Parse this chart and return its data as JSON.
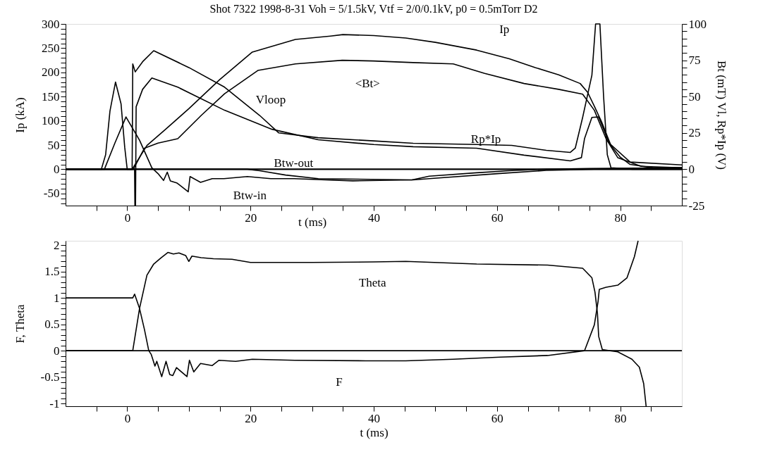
{
  "chart_data": [
    {
      "type": "line",
      "title": "Shot 7322   1998-8-31   Voh = 5/1.5kV, Vtf = 2/0/0.1kV, p0 = 0.5mTorr D2",
      "xlabel": "t (ms)",
      "ylabel": "Ip (kA)",
      "y2label": "Bt (mT)  Vl, Rp*Ip (V)",
      "xlim": [
        -10,
        90
      ],
      "xticks": [
        {
          "value": -5,
          "label": null
        },
        0,
        {
          "value": 5,
          "label": null
        },
        {
          "value": 10,
          "label": null
        },
        {
          "value": 15,
          "label": null
        },
        20,
        {
          "value": 25,
          "label": null
        },
        {
          "value": 30,
          "label": null
        },
        {
          "value": 35,
          "label": null
        },
        40,
        {
          "value": 45,
          "label": null
        },
        {
          "value": 50,
          "label": null
        },
        {
          "value": 55,
          "label": null
        },
        60,
        {
          "value": 65,
          "label": null
        },
        {
          "value": 70,
          "label": null
        },
        {
          "value": 75,
          "label": null
        },
        80,
        {
          "value": 85,
          "label": null
        }
      ],
      "ylim": [
        -75,
        300
      ],
      "yticks": [
        {
          "value": -70,
          "label": null
        },
        {
          "value": -60,
          "label": null
        },
        -50,
        {
          "value": -40,
          "label": null
        },
        {
          "value": -30,
          "label": null
        },
        {
          "value": -20,
          "label": null
        },
        {
          "value": -10,
          "label": null
        },
        0,
        {
          "value": 10,
          "label": null
        },
        {
          "value": 20,
          "label": null
        },
        {
          "value": 30,
          "label": null
        },
        {
          "value": 40,
          "label": null
        },
        50,
        {
          "value": 60,
          "label": null
        },
        {
          "value": 70,
          "label": null
        },
        {
          "value": 80,
          "label": null
        },
        {
          "value": 90,
          "label": null
        },
        100,
        {
          "value": 110,
          "label": null
        },
        {
          "value": 120,
          "label": null
        },
        {
          "value": 130,
          "label": null
        },
        {
          "value": 140,
          "label": null
        },
        150,
        {
          "value": 160,
          "label": null
        },
        {
          "value": 170,
          "label": null
        },
        {
          "value": 180,
          "label": null
        },
        {
          "value": 190,
          "label": null
        },
        200,
        {
          "value": 210,
          "label": null
        },
        {
          "value": 220,
          "label": null
        },
        {
          "value": 230,
          "label": null
        },
        {
          "value": 240,
          "label": null
        },
        250,
        {
          "value": 260,
          "label": null
        },
        {
          "value": 270,
          "label": null
        },
        {
          "value": 280,
          "label": null
        },
        {
          "value": 290,
          "label": null
        },
        300
      ],
      "y2lim": [
        -25,
        100
      ],
      "y2ticks": [
        -25,
        {
          "value": -20,
          "label": null
        },
        {
          "value": -15,
          "label": null
        },
        {
          "value": -10,
          "label": null
        },
        {
          "value": -5,
          "label": null
        },
        0,
        {
          "value": 5,
          "label": null
        },
        {
          "value": 10,
          "label": null
        },
        {
          "value": 15,
          "label": null
        },
        {
          "value": 20,
          "label": null
        },
        25,
        {
          "value": 30,
          "label": null
        },
        {
          "value": 35,
          "label": null
        },
        {
          "value": 40,
          "label": null
        },
        {
          "value": 45,
          "label": null
        },
        50,
        {
          "value": 55,
          "label": null
        },
        {
          "value": 60,
          "label": null
        },
        {
          "value": 65,
          "label": null
        },
        {
          "value": 70,
          "label": null
        },
        75,
        {
          "value": 80,
          "label": null
        },
        {
          "value": 85,
          "label": null
        },
        {
          "value": 90,
          "label": null
        },
        {
          "value": 95,
          "label": null
        },
        100
      ],
      "grid": false,
      "legend": false,
      "marker": "none",
      "line_style": "solid",
      "series": [
        {
          "name": "Ip",
          "color": "#000000",
          "axis": "y",
          "x": [
            -10,
            0.8,
            3.2,
            6,
            10,
            15,
            20.3,
            27.3,
            33,
            35,
            40,
            45.2,
            50,
            56.7,
            62,
            66.2,
            70,
            73.5,
            74.7,
            75.8,
            77,
            78.5,
            80,
            81.6,
            85.4,
            90
          ],
          "values": [
            0,
            0,
            49,
            80,
            125,
            185,
            242,
            268,
            275,
            278,
            276,
            271,
            262,
            246,
            228,
            210,
            195,
            177,
            159,
            130,
            97,
            49,
            25,
            10,
            3,
            3
          ]
        },
        {
          "name": "<Bt>",
          "color": "#000000",
          "axis": "y2",
          "x": [
            -10,
            1,
            2.8,
            5,
            8.2,
            12,
            15.8,
            21.2,
            27.3,
            34.9,
            40,
            46.4,
            52.9,
            58,
            64.4,
            70,
            73.9,
            75.8,
            77.7,
            79.6,
            83.4,
            90
          ],
          "values": [
            0,
            0,
            14.5,
            18,
            21,
            37,
            52,
            68,
            72.5,
            75,
            74.5,
            73.4,
            72.5,
            66,
            59,
            55,
            51.7,
            40.6,
            21,
            8,
            2,
            1
          ]
        },
        {
          "name": "Vloop",
          "color": "#000000",
          "axis": "y2",
          "x": [
            -10,
            0.8,
            0.9,
            1.3,
            2.5,
            4.3,
            10,
            15.8,
            21.5,
            24.6,
            31,
            40,
            46.4,
            56.7,
            62.4,
            68,
            71.9,
            72.7,
            73.9,
            75.4,
            76,
            76.7,
            77.3,
            77.9,
            78.5,
            82,
            90
          ],
          "values": [
            0,
            0,
            72.5,
            67,
            74,
            81.6,
            70,
            56.5,
            37,
            25,
            21.7,
            19.5,
            17.9,
            17,
            16.4,
            13,
            11.6,
            14.5,
            35.7,
            64.7,
            100,
            100,
            50,
            10,
            1,
            0,
            0
          ]
        },
        {
          "name": "Rp*Ip",
          "color": "#000000",
          "axis": "y2",
          "x": [
            -10,
            1.2,
            1.25,
            1.35,
            1.45,
            2.5,
            4,
            8.2,
            15.8,
            23.5,
            31,
            40,
            46.4,
            56.7,
            64.4,
            71.9,
            73.7,
            74.2,
            75.4,
            76.5,
            78.2,
            81.6,
            90
          ],
          "values": [
            0,
            0,
            -25,
            -25,
            43,
            55,
            62.8,
            56.5,
            40.6,
            27.5,
            20.3,
            17,
            15.5,
            14.5,
            9.7,
            5.8,
            8,
            21,
            35.7,
            36,
            18,
            5,
            3
          ]
        },
        {
          "name": "Btw-in",
          "color": "#000000",
          "axis": "y2",
          "x": [
            -10,
            -3.7,
            -2,
            -0.2,
            2,
            4,
            5,
            5.9,
            6.5,
            7,
            8.1,
            9.9,
            10.2,
            11.9,
            13.8,
            15.7,
            19.5,
            23.3,
            27.1,
            36.6,
            46.2,
            49,
            56.7,
            62.4,
            68,
            75,
            90
          ],
          "values": [
            0,
            0,
            18,
            36,
            20,
            1,
            -3,
            -7.7,
            -2,
            -8,
            -9.5,
            -15.5,
            -5,
            -9,
            -6.5,
            -6.5,
            -5,
            -6.5,
            -6.5,
            -8,
            -7.3,
            -4.8,
            -2.4,
            -0.9,
            0,
            0.5,
            1
          ]
        },
        {
          "name": "Btw-out",
          "color": "#000000",
          "axis": "y2",
          "x": [
            -10,
            19.5,
            21.5,
            25.7,
            31,
            46.4,
            49,
            60.5,
            68,
            75.8,
            90
          ],
          "values": [
            0,
            0,
            -1,
            -4,
            -6.5,
            -7.3,
            -6.5,
            -2.9,
            -0.8,
            0,
            0
          ]
        },
        {
          "color": "#000000",
          "axis": "y2",
          "x": [
            -10,
            -4.2,
            -3.5,
            -2.8,
            -1.9,
            -1,
            -0.4,
            0,
            90
          ],
          "values": [
            0,
            0,
            10,
            40,
            60,
            45,
            15,
            0,
            0
          ]
        }
      ],
      "ref_lines": [
        {
          "axis": "y",
          "value": 0,
          "color": "#000000"
        }
      ]
    },
    {
      "type": "line",
      "xlabel": "t (ms)",
      "ylabel": "F, Theta",
      "xlim": [
        -10,
        90
      ],
      "xticks": [
        {
          "value": -5,
          "label": null
        },
        0,
        {
          "value": 5,
          "label": null
        },
        {
          "value": 10,
          "label": null
        },
        {
          "value": 15,
          "label": null
        },
        20,
        {
          "value": 25,
          "label": null
        },
        {
          "value": 30,
          "label": null
        },
        {
          "value": 35,
          "label": null
        },
        40,
        {
          "value": 45,
          "label": null
        },
        {
          "value": 50,
          "label": null
        },
        {
          "value": 55,
          "label": null
        },
        60,
        {
          "value": 65,
          "label": null
        },
        {
          "value": 70,
          "label": null
        },
        {
          "value": 75,
          "label": null
        },
        80,
        {
          "value": 85,
          "label": null
        }
      ],
      "ylim": [
        -1.05,
        2.08
      ],
      "yticks": [
        -1,
        {
          "value": -0.9,
          "label": null
        },
        {
          "value": -0.8,
          "label": null
        },
        {
          "value": -0.7,
          "label": null
        },
        {
          "value": -0.6,
          "label": null
        },
        -0.5,
        {
          "value": -0.4,
          "label": null
        },
        {
          "value": -0.3,
          "label": null
        },
        {
          "value": -0.2,
          "label": null
        },
        {
          "value": -0.1,
          "label": null
        },
        0,
        {
          "value": 0.1,
          "label": null
        },
        {
          "value": 0.2,
          "label": null
        },
        {
          "value": 0.3,
          "label": null
        },
        {
          "value": 0.4,
          "label": null
        },
        0.5,
        {
          "value": 0.6,
          "label": null
        },
        {
          "value": 0.7,
          "label": null
        },
        {
          "value": 0.8,
          "label": null
        },
        {
          "value": 0.9,
          "label": null
        },
        1,
        {
          "value": 1.1,
          "label": null
        },
        {
          "value": 1.2,
          "label": null
        },
        {
          "value": 1.3,
          "label": null
        },
        {
          "value": 1.4,
          "label": null
        },
        1.5,
        {
          "value": 1.6,
          "label": null
        },
        {
          "value": 1.7,
          "label": null
        },
        {
          "value": 1.8,
          "label": null
        },
        {
          "value": 1.9,
          "label": null
        },
        2
      ],
      "grid": false,
      "legend": false,
      "marker": "none",
      "line_style": "solid",
      "series": [
        {
          "name": "Theta",
          "color": "#000000",
          "x": [
            -10,
            0.9,
            2,
            3.2,
            4.3,
            5.4,
            6.6,
            7.5,
            8.4,
            9.5,
            10,
            10.5,
            12,
            14,
            17,
            20,
            30,
            40,
            45.2,
            56.7,
            68.2,
            73.9,
            75.4,
            75.9,
            76.3,
            76.5,
            77.1,
            79.6,
            81.9,
            83.1,
            83.8,
            84.2
          ],
          "values": [
            0,
            0,
            0.8,
            1.43,
            1.64,
            1.75,
            1.86,
            1.83,
            1.85,
            1.8,
            1.69,
            1.79,
            1.76,
            1.74,
            1.73,
            1.67,
            1.67,
            1.68,
            1.69,
            1.64,
            1.62,
            1.56,
            1.38,
            1.11,
            0.71,
            0.27,
            0.02,
            -0.02,
            -0.16,
            -0.31,
            -0.62,
            -1.05
          ]
        },
        {
          "name": "F",
          "color": "#000000",
          "x": [
            -10,
            0.9,
            1.2,
            2,
            2.8,
            3.5,
            3.9,
            4.5,
            4.8,
            5.6,
            6.3,
            6.9,
            7.4,
            8,
            9.7,
            10.1,
            10.8,
            11.9,
            13.8,
            14.9,
            17.6,
            20.3,
            27.2,
            38.7,
            45.2,
            52.9,
            60.5,
            68.2,
            74.2,
            75.8,
            76.4,
            76.6,
            77.7,
            79.6,
            81.1,
            82.3,
            82.9
          ],
          "values": [
            1,
            1,
            1.07,
            0.8,
            0.4,
            0,
            -0.07,
            -0.29,
            -0.2,
            -0.49,
            -0.2,
            -0.45,
            -0.47,
            -0.32,
            -0.49,
            -0.18,
            -0.4,
            -0.24,
            -0.28,
            -0.18,
            -0.2,
            -0.16,
            -0.18,
            -0.19,
            -0.19,
            -0.16,
            -0.12,
            -0.09,
            0,
            0.49,
            0.93,
            1.16,
            1.2,
            1.24,
            1.38,
            1.78,
            2.08
          ]
        }
      ],
      "ref_lines": [
        {
          "axis": "y",
          "value": 0,
          "color": "#000000"
        }
      ]
    }
  ]
}
